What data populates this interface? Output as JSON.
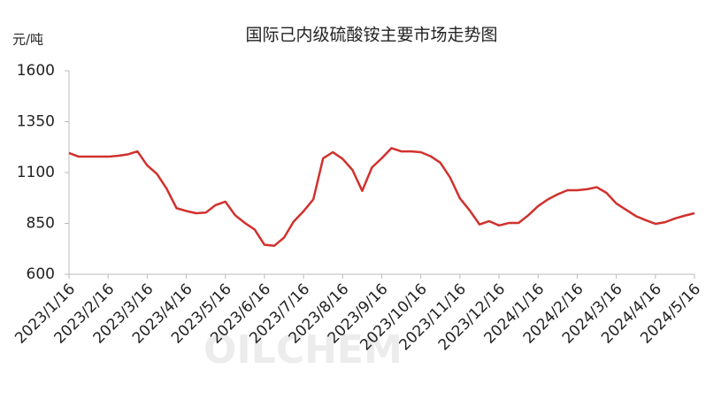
{
  "chart_data": {
    "type": "line",
    "title": "国际己内级硫酸铵主要市场走势图",
    "y_unit": "元/吨",
    "watermark": "OILCHEM",
    "categories": [
      "2023/1/16",
      null,
      null,
      null,
      "2023/2/16",
      null,
      null,
      null,
      "2023/3/16",
      null,
      null,
      null,
      "2023/4/16",
      null,
      null,
      null,
      "2023/5/16",
      null,
      null,
      null,
      "2023/6/16",
      null,
      null,
      null,
      "2023/7/16",
      null,
      null,
      null,
      "2023/8/16",
      null,
      null,
      null,
      "2023/9/16",
      null,
      null,
      null,
      "2023/10/16",
      null,
      null,
      null,
      "2023/11/16",
      null,
      null,
      null,
      "2023/12/16",
      null,
      null,
      null,
      "2024/1/16",
      null,
      null,
      null,
      "2024/2/16",
      null,
      null,
      null,
      "2024/3/16",
      null,
      null,
      null,
      "2024/4/16",
      null,
      null,
      null,
      "2024/5/16"
    ],
    "series": [
      {
        "name": "国际己内级硫酸铵",
        "color": "#d0312d",
        "values": [
          1196,
          1178,
          1178,
          1178,
          1178,
          1182,
          1189,
          1204,
          1135,
          1093,
          1020,
          925,
          911,
          900,
          903,
          940,
          957,
          890,
          852,
          820,
          745,
          740,
          780,
          860,
          910,
          968,
          1170,
          1200,
          1167,
          1113,
          1010,
          1125,
          1170,
          1220,
          1204,
          1204,
          1200,
          1180,
          1148,
          1075,
          973,
          914,
          845,
          861,
          840,
          852,
          852,
          890,
          935,
          968,
          993,
          1013,
          1013,
          1018,
          1028,
          1000,
          948,
          917,
          886,
          866,
          848,
          856,
          874,
          888,
          900
        ]
      }
    ],
    "ylim": [
      600,
      1600
    ],
    "yticks": [
      600,
      850,
      1100,
      1350,
      1600
    ],
    "grid": false
  }
}
